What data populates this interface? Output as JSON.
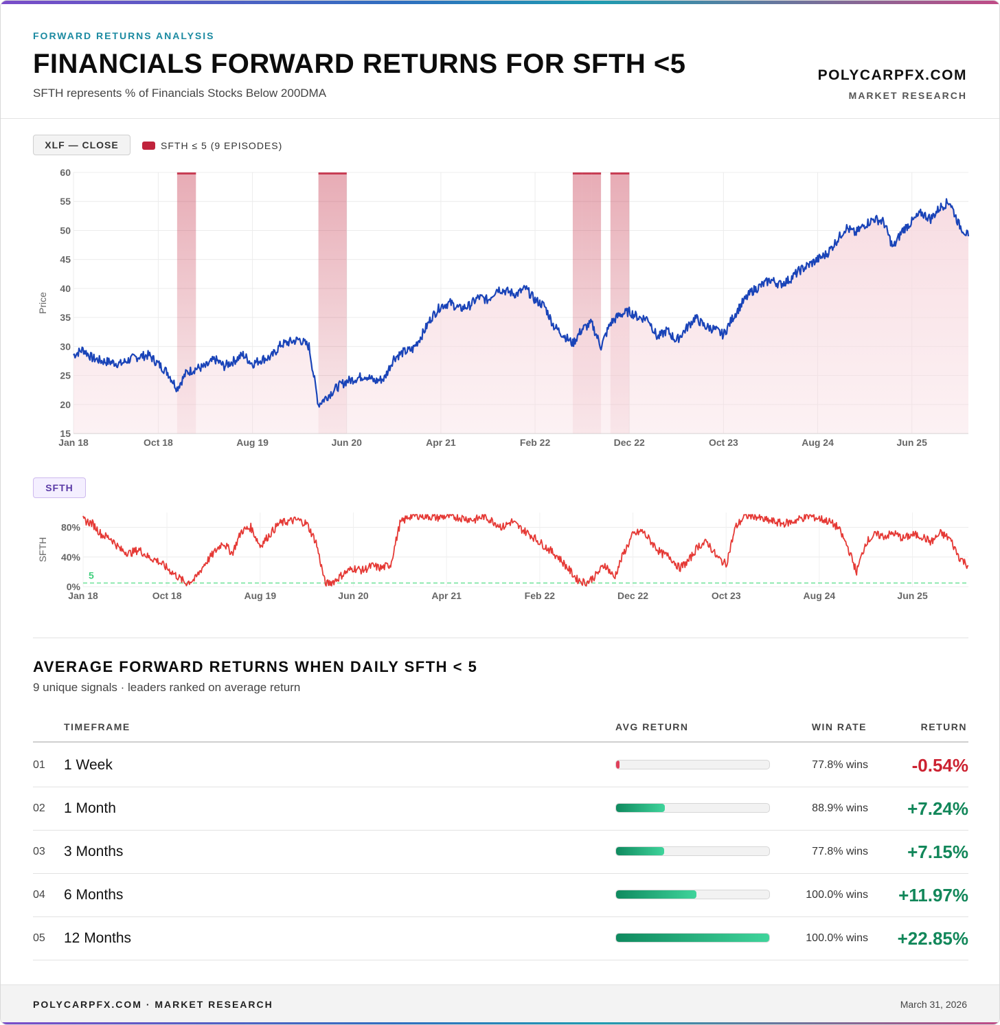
{
  "header": {
    "eyebrow": "FORWARD RETURNS ANALYSIS",
    "title": "FINANCIALS FORWARD RETURNS FOR SFTH <5",
    "subtitle": "SFTH represents % of Financials Stocks Below 200DMA",
    "brand": "POLYCARPFX.COM",
    "brand_sub": "MARKET RESEARCH"
  },
  "price_panel": {
    "pill_label": "XLF — CLOSE",
    "legend_label": "SFTH ≤ 5 (9 EPISODES)",
    "colors": {
      "line": "#1a44b8",
      "band": "#c0233c",
      "area": "#f7d9df"
    }
  },
  "sfth_panel": {
    "pill_label": "SFTH",
    "threshold_label": "5",
    "colors": {
      "line": "#e53935",
      "threshold": "#6ee29a"
    }
  },
  "chart_data": [
    {
      "type": "line",
      "title": "",
      "xlabel": "",
      "ylabel": "Price",
      "ylim": [
        15,
        60
      ],
      "yticks": [
        15,
        20,
        25,
        30,
        35,
        40,
        45,
        50,
        55,
        60
      ],
      "xticks": [
        "Jan 18",
        "Oct 18",
        "Aug 19",
        "Jun 20",
        "Apr 21",
        "Feb 22",
        "Dec 22",
        "Oct 23",
        "Aug 24",
        "Jun 25"
      ],
      "xlim": [
        "2018-01",
        "2025-12"
      ],
      "grid": true,
      "series": [
        {
          "name": "XLF — CLOSE",
          "x": [
            "2018-01",
            "2018-02",
            "2018-03",
            "2018-04",
            "2018-05",
            "2018-06",
            "2018-07",
            "2018-08",
            "2018-09",
            "2018-10",
            "2018-11",
            "2018-12",
            "2019-01",
            "2019-02",
            "2019-03",
            "2019-04",
            "2019-05",
            "2019-06",
            "2019-07",
            "2019-08",
            "2019-09",
            "2019-10",
            "2019-11",
            "2019-12",
            "2020-01",
            "2020-02",
            "2020-03",
            "2020-04",
            "2020-05",
            "2020-06",
            "2020-07",
            "2020-08",
            "2020-09",
            "2020-10",
            "2020-11",
            "2020-12",
            "2021-01",
            "2021-02",
            "2021-03",
            "2021-04",
            "2021-05",
            "2021-06",
            "2021-07",
            "2021-08",
            "2021-09",
            "2021-10",
            "2021-11",
            "2021-12",
            "2022-01",
            "2022-02",
            "2022-03",
            "2022-04",
            "2022-05",
            "2022-06",
            "2022-07",
            "2022-08",
            "2022-09",
            "2022-10",
            "2022-11",
            "2022-12",
            "2023-01",
            "2023-02",
            "2023-03",
            "2023-04",
            "2023-05",
            "2023-06",
            "2023-07",
            "2023-08",
            "2023-09",
            "2023-10",
            "2023-11",
            "2023-12",
            "2024-01",
            "2024-02",
            "2024-03",
            "2024-04",
            "2024-05",
            "2024-06",
            "2024-07",
            "2024-08",
            "2024-09",
            "2024-10",
            "2024-11",
            "2024-12",
            "2025-01",
            "2025-02",
            "2025-03",
            "2025-04",
            "2025-05",
            "2025-06",
            "2025-07",
            "2025-08",
            "2025-09",
            "2025-10",
            "2025-11",
            "2025-12"
          ],
          "values": [
            28.5,
            29.5,
            28,
            27.5,
            27.3,
            27,
            27.8,
            28.3,
            28.5,
            27,
            25.5,
            22.8,
            25.5,
            26.2,
            26.5,
            27.8,
            26.6,
            27.5,
            28.6,
            27,
            27.8,
            28.2,
            30.3,
            30.8,
            31.2,
            30,
            20,
            21.5,
            23,
            24,
            24.5,
            25,
            24,
            24.5,
            28,
            29,
            29.5,
            32,
            35,
            37,
            37.5,
            36.5,
            37,
            38.5,
            38,
            40,
            39.5,
            39,
            40,
            38,
            37,
            33.5,
            32,
            30.5,
            33,
            34,
            30,
            34,
            35.5,
            36,
            35,
            34.8,
            31.5,
            32.8,
            31,
            33,
            35,
            33.5,
            33,
            32,
            35,
            37.5,
            39.5,
            40.5,
            41.5,
            40.7,
            41.5,
            43,
            44,
            45,
            46,
            48.2,
            50.5,
            49.5,
            51,
            52,
            51.5,
            47,
            50,
            51.5,
            53,
            52,
            54,
            55,
            51,
            49
          ]
        }
      ],
      "bands": [
        {
          "name": "SFTH ≤ 5",
          "start": "2018-12",
          "end": "2019-01"
        },
        {
          "name": "SFTH ≤ 5",
          "start": "2020-03",
          "end": "2020-05"
        },
        {
          "name": "SFTH ≤ 5",
          "start": "2022-06",
          "end": "2022-06"
        },
        {
          "name": "SFTH ≤ 5",
          "start": "2022-07",
          "end": "2022-07"
        },
        {
          "name": "SFTH ≤ 5",
          "start": "2022-08",
          "end": "2022-08"
        },
        {
          "name": "SFTH ≤ 5",
          "start": "2022-10",
          "end": "2022-11"
        }
      ]
    },
    {
      "type": "line",
      "title": "",
      "xlabel": "",
      "ylabel": "SFTH",
      "ylim": [
        0,
        100
      ],
      "yticks": [
        0,
        40,
        80
      ],
      "ytick_labels": [
        "0%",
        "40%",
        "80%"
      ],
      "xticks": [
        "Jan 18",
        "Oct 18",
        "Aug 19",
        "Jun 20",
        "Apr 21",
        "Feb 22",
        "Dec 22",
        "Oct 23",
        "Aug 24",
        "Jun 25"
      ],
      "xlim": [
        "2018-01",
        "2025-12"
      ],
      "threshold": 5,
      "grid": true,
      "series": [
        {
          "name": "SFTH",
          "x": [
            "2018-01",
            "2018-02",
            "2018-03",
            "2018-04",
            "2018-05",
            "2018-06",
            "2018-07",
            "2018-08",
            "2018-09",
            "2018-10",
            "2018-11",
            "2018-12",
            "2019-01",
            "2019-02",
            "2019-03",
            "2019-04",
            "2019-05",
            "2019-06",
            "2019-07",
            "2019-08",
            "2019-09",
            "2019-10",
            "2019-11",
            "2019-12",
            "2020-01",
            "2020-02",
            "2020-03",
            "2020-04",
            "2020-05",
            "2020-06",
            "2020-07",
            "2020-08",
            "2020-09",
            "2020-10",
            "2020-11",
            "2020-12",
            "2021-01",
            "2021-02",
            "2021-03",
            "2021-04",
            "2021-05",
            "2021-06",
            "2021-07",
            "2021-08",
            "2021-09",
            "2021-10",
            "2021-11",
            "2021-12",
            "2022-01",
            "2022-02",
            "2022-03",
            "2022-04",
            "2022-05",
            "2022-06",
            "2022-07",
            "2022-08",
            "2022-09",
            "2022-10",
            "2022-11",
            "2022-12",
            "2023-01",
            "2023-02",
            "2023-03",
            "2023-04",
            "2023-05",
            "2023-06",
            "2023-07",
            "2023-08",
            "2023-09",
            "2023-10",
            "2023-11",
            "2023-12",
            "2024-01",
            "2024-02",
            "2024-03",
            "2024-04",
            "2024-05",
            "2024-06",
            "2024-07",
            "2024-08",
            "2024-09",
            "2024-10",
            "2024-11",
            "2024-12",
            "2025-01",
            "2025-02",
            "2025-03",
            "2025-04",
            "2025-05",
            "2025-06",
            "2025-07",
            "2025-08",
            "2025-09",
            "2025-10",
            "2025-11",
            "2025-12"
          ],
          "values": [
            90,
            85,
            70,
            65,
            50,
            45,
            50,
            40,
            35,
            25,
            15,
            5,
            10,
            30,
            45,
            60,
            45,
            75,
            80,
            55,
            70,
            85,
            88,
            90,
            85,
            60,
            3,
            8,
            18,
            25,
            22,
            28,
            25,
            30,
            85,
            95,
            96,
            95,
            93,
            95,
            94,
            92,
            90,
            95,
            88,
            80,
            88,
            78,
            70,
            60,
            50,
            40,
            25,
            10,
            5,
            15,
            30,
            12,
            45,
            70,
            75,
            60,
            45,
            40,
            25,
            35,
            55,
            60,
            40,
            30,
            80,
            95,
            96,
            90,
            88,
            85,
            87,
            92,
            95,
            92,
            88,
            80,
            55,
            20,
            60,
            70,
            68,
            72,
            65,
            70,
            68,
            60,
            72,
            65,
            40,
            28
          ]
        }
      ]
    }
  ],
  "returns": {
    "title": "AVERAGE FORWARD RETURNS WHEN DAILY SFTH < 5",
    "subtitle": "9 unique signals · leaders ranked on average return",
    "headers": {
      "timeframe": "TIMEFRAME",
      "avg_return": "AVG RETURN",
      "win_rate": "WIN RATE",
      "return": "RETURN"
    },
    "rows": [
      {
        "rank": "01",
        "timeframe": "1 Week",
        "win_rate": "77.8% wins",
        "return": "-0.54%",
        "value": -0.54,
        "bar_fraction": 0.024
      },
      {
        "rank": "02",
        "timeframe": "1 Month",
        "win_rate": "88.9% wins",
        "return": "+7.24%",
        "value": 7.24,
        "bar_fraction": 0.317
      },
      {
        "rank": "03",
        "timeframe": "3 Months",
        "win_rate": "77.8% wins",
        "return": "+7.15%",
        "value": 7.15,
        "bar_fraction": 0.313
      },
      {
        "rank": "04",
        "timeframe": "6 Months",
        "win_rate": "100.0% wins",
        "return": "+11.97%",
        "value": 11.97,
        "bar_fraction": 0.524
      },
      {
        "rank": "05",
        "timeframe": "12 Months",
        "win_rate": "100.0% wins",
        "return": "+22.85%",
        "value": 22.85,
        "bar_fraction": 1.0
      }
    ]
  },
  "footer": {
    "left": "POLYCARPFX.COM · MARKET RESEARCH",
    "right": "March 31, 2026"
  }
}
